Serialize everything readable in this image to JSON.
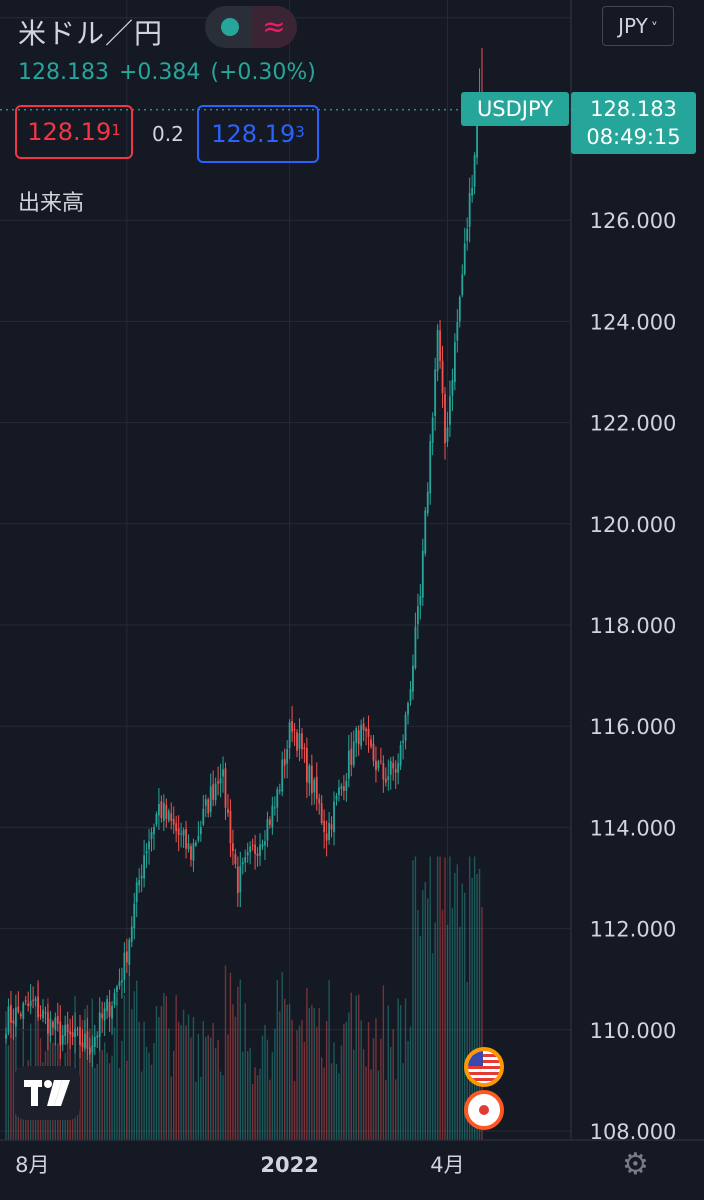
{
  "header": {
    "title": "米ドル／円",
    "status_wave": "≈",
    "last_price": "128.183",
    "change": "+0.384",
    "change_pct": "(+0.30%)",
    "bid_main": "128.19",
    "bid_sup": "1",
    "spread": "0.2",
    "ask_main": "128.19",
    "ask_sup": "3",
    "volume_label": "出来高",
    "currency": "JPY"
  },
  "price_tag": {
    "symbol": "USDJPY",
    "price": "128.183",
    "countdown": "08:49:15"
  },
  "colors": {
    "background": "#151924",
    "up": "#26a69a",
    "down": "#ef5350",
    "bid": "#f23645",
    "ask": "#2962ff",
    "grid": "#262a36",
    "text": "#d1d4dc"
  },
  "icons": {
    "logo": "tradingview-logo",
    "event_us": "us-flag-event-icon",
    "event_jp": "japan-flag-event-icon",
    "settings": "gear-icon"
  },
  "chart_data": {
    "type": "candlestick",
    "symbol": "USDJPY",
    "period": "daily",
    "x_tick_labels": [
      "8月",
      "2022",
      "4月"
    ],
    "y_tick_labels": [
      "108.000",
      "110.000",
      "112.000",
      "114.000",
      "116.000",
      "118.000",
      "120.000",
      "122.000",
      "124.000",
      "126.000"
    ],
    "ylim": [
      107.9,
      129.8
    ],
    "last_close": 128.183,
    "grid": true,
    "anchors": [
      {
        "date": "2021-07-26",
        "close": 110.2
      },
      {
        "date": "2021-08-10",
        "close": 110.5
      },
      {
        "date": "2021-08-25",
        "close": 109.9
      },
      {
        "date": "2021-09-10",
        "close": 109.7
      },
      {
        "date": "2021-09-24",
        "close": 110.7
      },
      {
        "date": "2021-09-30",
        "close": 111.3
      },
      {
        "date": "2021-10-12",
        "close": 113.5
      },
      {
        "date": "2021-10-20",
        "close": 114.4
      },
      {
        "date": "2021-11-08",
        "close": 113.5
      },
      {
        "date": "2021-11-24",
        "close": 115.2
      },
      {
        "date": "2021-12-03",
        "close": 112.9
      },
      {
        "date": "2021-12-14",
        "close": 113.6
      },
      {
        "date": "2021-12-24",
        "close": 114.4
      },
      {
        "date": "2022-01-04",
        "close": 116.1
      },
      {
        "date": "2022-01-24",
        "close": 113.9
      },
      {
        "date": "2022-02-10",
        "close": 115.9
      },
      {
        "date": "2022-02-24",
        "close": 115.0
      },
      {
        "date": "2022-03-04",
        "close": 115.2
      },
      {
        "date": "2022-03-09",
        "close": 116.1
      },
      {
        "date": "2022-03-17",
        "close": 118.5
      },
      {
        "date": "2022-03-22",
        "close": 120.8
      },
      {
        "date": "2022-03-28",
        "close": 123.8
      },
      {
        "date": "2022-03-31",
        "close": 121.6
      },
      {
        "date": "2022-04-12",
        "close": 125.4
      },
      {
        "date": "2022-04-20",
        "close": 128.4
      },
      {
        "date": "2022-04-21",
        "close": 128.183
      }
    ],
    "high_max": 129.4,
    "volume_series": "relative daily volume bars at bottom, colored by candle direction"
  }
}
